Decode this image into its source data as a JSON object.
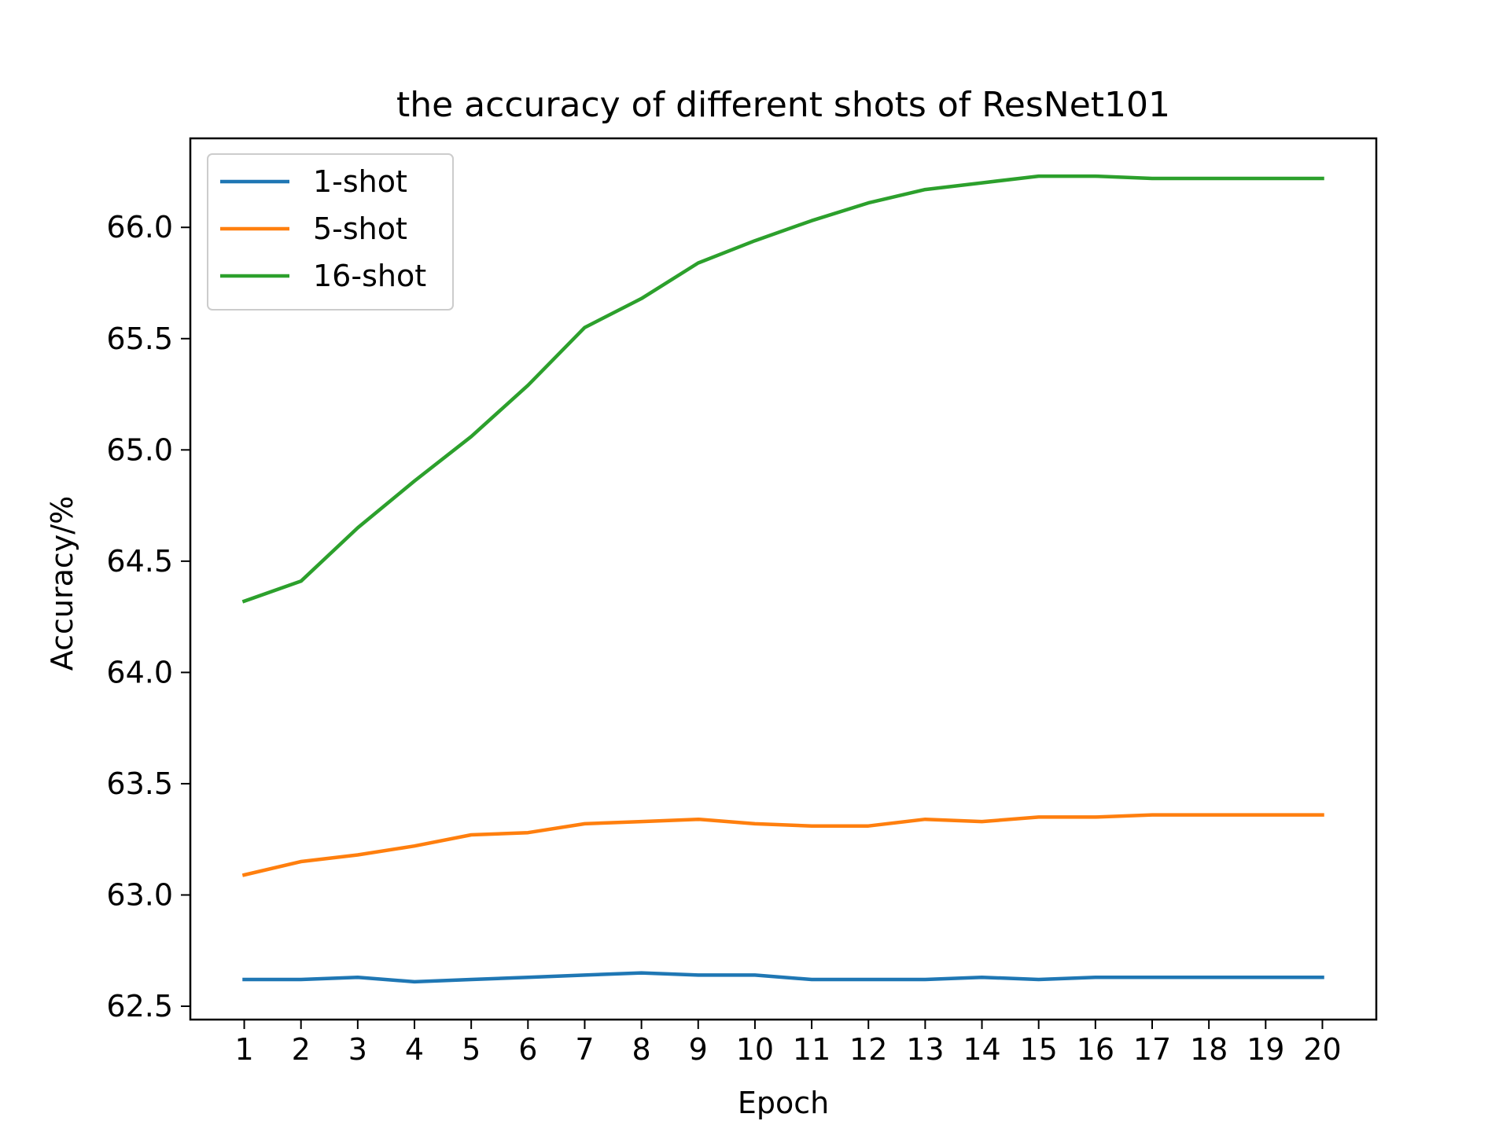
{
  "chart_data": {
    "type": "line",
    "title": "the accuracy of different shots of ResNet101",
    "xlabel": "Epoch",
    "ylabel": "Accuracy/%",
    "x": [
      1,
      2,
      3,
      4,
      5,
      6,
      7,
      8,
      9,
      10,
      11,
      12,
      13,
      14,
      15,
      16,
      17,
      18,
      19,
      20
    ],
    "xticks": [
      "1",
      "2",
      "3",
      "4",
      "5",
      "6",
      "7",
      "8",
      "9",
      "10",
      "11",
      "12",
      "13",
      "14",
      "15",
      "16",
      "17",
      "18",
      "19",
      "20"
    ],
    "xlim": [
      0.05,
      20.95
    ],
    "yticks": [
      "62.5",
      "63.0",
      "63.5",
      "64.0",
      "64.5",
      "65.0",
      "65.5",
      "66.0"
    ],
    "ylim": [
      62.44,
      66.4
    ],
    "grid": false,
    "legend_position": "top-left",
    "series": [
      {
        "name": "1-shot",
        "color": "#1f77b4",
        "values": [
          62.62,
          62.62,
          62.63,
          62.61,
          62.62,
          62.63,
          62.64,
          62.65,
          62.64,
          62.64,
          62.62,
          62.62,
          62.62,
          62.63,
          62.62,
          62.63,
          62.63,
          62.63,
          62.63,
          62.63
        ]
      },
      {
        "name": "5-shot",
        "color": "#ff7f0e",
        "values": [
          63.09,
          63.15,
          63.18,
          63.22,
          63.27,
          63.28,
          63.32,
          63.33,
          63.34,
          63.32,
          63.31,
          63.31,
          63.34,
          63.33,
          63.35,
          63.35,
          63.36,
          63.36,
          63.36,
          63.36
        ]
      },
      {
        "name": "16-shot",
        "color": "#2ca02c",
        "values": [
          64.32,
          64.41,
          64.65,
          64.86,
          65.06,
          65.29,
          65.55,
          65.68,
          65.84,
          65.94,
          66.03,
          66.11,
          66.17,
          66.2,
          66.23,
          66.23,
          66.22,
          66.22,
          66.22,
          66.22
        ]
      }
    ]
  }
}
